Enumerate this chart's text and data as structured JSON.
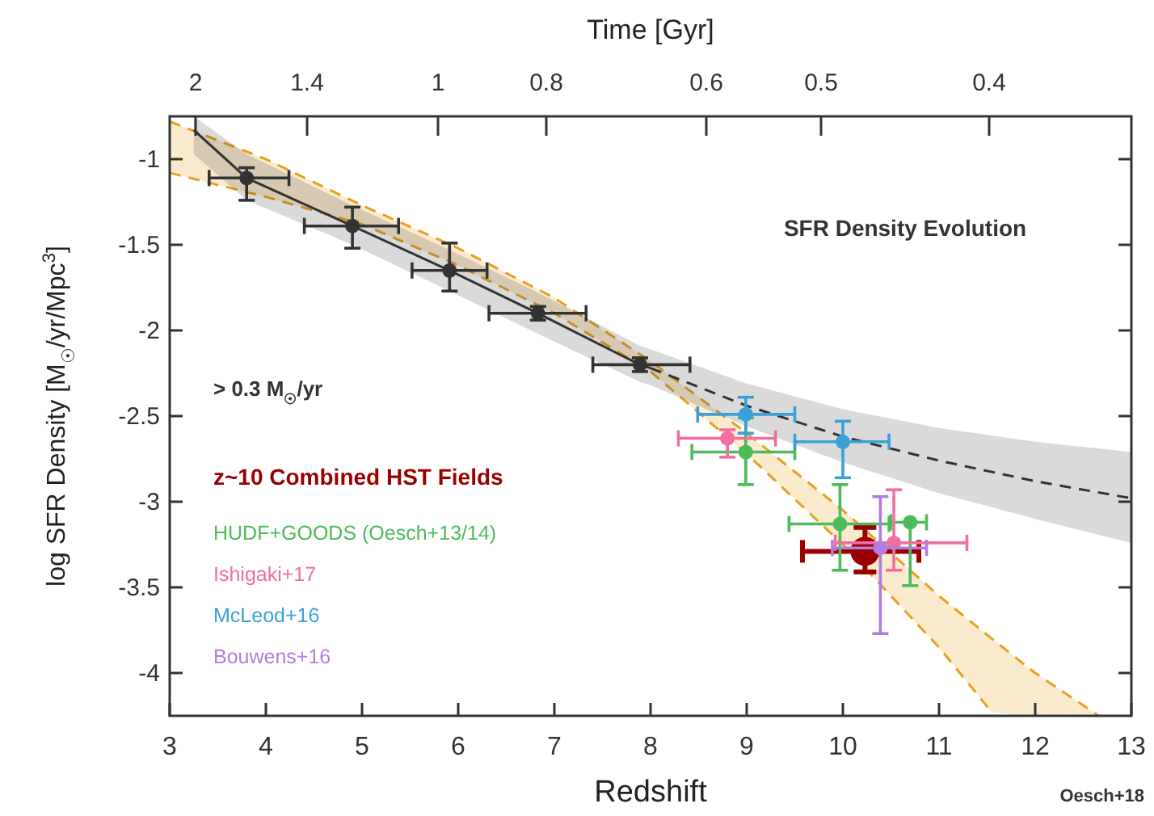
{
  "chart_data": {
    "type": "scatter",
    "xlabel": "Redshift",
    "ylabel": "log SFR Density [M$_{☉}$/yr/Mpc$^{3}$]",
    "x2label": "Time [Gyr]",
    "xlim": [
      3,
      13
    ],
    "ylim": [
      -4.25,
      -0.75
    ],
    "xticks": [
      3,
      4,
      5,
      6,
      7,
      8,
      9,
      10,
      11,
      12,
      13
    ],
    "yticks": [
      -1,
      -1.5,
      -2,
      -2.5,
      -3,
      -3.5,
      -4
    ],
    "grid": false,
    "legend": "left",
    "marker": "circle",
    "annotations": [
      "SFR Density Evolution",
      "> 0.3 M$_{☉}$/yr",
      "Oesch+18",
      "2",
      "1.4",
      "1",
      "0.8",
      "0.6",
      "0.5",
      "0.4"
    ],
    "series": [
      {
        "type": "line",
        "color": "#e8a020",
        "marker": "none",
        "line_style": "dashed",
        "x": [
          3,
          4,
          5,
          6,
          7,
          8,
          9,
          10,
          11,
          11.55,
          12,
          12.66
        ],
        "values": [
          -0.78,
          -1.0,
          -1.27,
          -1.52,
          -1.81,
          -2.18,
          -2.6,
          -3.05,
          -3.55,
          -3.8,
          -4.0,
          -4.25
        ],
        "upper": [
          -0.78,
          -1.0,
          -1.27,
          -1.52,
          -1.81,
          -2.18,
          -2.6,
          -3.05,
          -3.55,
          -3.8,
          -4.0,
          -4.25
        ],
        "lower": [
          -1.08,
          -1.22,
          -1.38,
          -1.62,
          -1.9,
          -2.24,
          -2.72,
          -3.25,
          -3.85,
          -4.23,
          -4.25,
          -4.25
        ]
      },
      {
        "type": "line",
        "color": "#e8a020",
        "marker": "none",
        "line_style": "dashed",
        "x": [
          3,
          4,
          5,
          6,
          7,
          8,
          9,
          10,
          11,
          11.55
        ],
        "values": [
          -1.08,
          -1.22,
          -1.38,
          -1.62,
          -1.9,
          -2.24,
          -2.72,
          -3.25,
          -3.85,
          -4.23
        ]
      },
      {
        "type": "line",
        "color": "#333333",
        "marker": "none",
        "line_style": "solid",
        "x": [
          3.25,
          3.8,
          4.9,
          5.91,
          6.83,
          7.89,
          8.0
        ],
        "values": [
          -0.83,
          -1.11,
          -1.39,
          -1.65,
          -1.9,
          -2.2,
          -2.22
        ],
        "lower": [
          -0.97,
          -1.24,
          -1.5,
          -1.77,
          -2.02,
          -2.3,
          -2.32
        ],
        "upper": [
          -0.75,
          -0.97,
          -1.27,
          -1.53,
          -1.78,
          -2.09,
          -2.11
        ]
      },
      {
        "type": "line",
        "color": "#333333",
        "marker": "none",
        "line_style": "dashed",
        "x": [
          8.0,
          9,
          10,
          11,
          12,
          13
        ],
        "values": [
          -2.22,
          -2.44,
          -2.62,
          -2.76,
          -2.88,
          -2.98
        ],
        "lower": [
          -2.32,
          -2.56,
          -2.77,
          -2.95,
          -3.1,
          -3.24
        ],
        "upper": [
          -2.11,
          -2.31,
          -2.46,
          -2.57,
          -2.65,
          -2.71
        ]
      },
      {
        "color": "#333333",
        "x": [
          3.8,
          4.9,
          5.91,
          6.83,
          7.89
        ],
        "values": [
          -1.11,
          -1.39,
          -1.65,
          -1.9,
          -2.2
        ],
        "xerrors": [
          [
            3.41,
            4.24
          ],
          [
            4.4,
            5.38
          ],
          [
            5.52,
            6.3
          ],
          [
            6.32,
            7.33
          ],
          [
            7.4,
            8.41
          ]
        ],
        "errors": [
          [
            -1.24,
            -1.05
          ],
          [
            -1.52,
            -1.28
          ],
          [
            -1.77,
            -1.49
          ],
          [
            -1.94,
            -1.86
          ],
          [
            -2.24,
            -2.16
          ]
        ]
      },
      {
        "name": "z~10 Combined HST Fields",
        "color": "#9b0000",
        "x": [
          10.23
        ],
        "values": [
          -3.29
        ],
        "xerrors": [
          [
            9.58,
            10.79
          ]
        ],
        "errors": [
          [
            -3.41,
            -3.15
          ]
        ]
      },
      {
        "name": "HUDF+GOODS (Oesch+13/14)",
        "color": "#4dbb5a",
        "x": [
          8.99,
          9.97,
          10.7
        ],
        "values": [
          -2.71,
          -3.13,
          -3.12
        ],
        "xerrors": [
          [
            8.43,
            9.5
          ],
          [
            9.44,
            10.48
          ],
          [
            10.5,
            10.87
          ]
        ],
        "errors": [
          [
            -2.9,
            -2.51
          ],
          [
            -3.4,
            -2.9
          ],
          [
            -3.49,
            -3.12
          ]
        ]
      },
      {
        "name": "Ishigaki+17",
        "color": "#f06fa0",
        "x": [
          8.8,
          10.53
        ],
        "values": [
          -2.63,
          -3.24
        ],
        "xerrors": [
          [
            8.29,
            9.3
          ],
          [
            9.92,
            11.29
          ]
        ],
        "errors": [
          [
            -2.74,
            -2.58
          ],
          [
            -3.4,
            -2.93
          ]
        ]
      },
      {
        "name": "McLeod+16",
        "color": "#3aa0d8",
        "x": [
          8.99,
          10.0
        ],
        "values": [
          -2.49,
          -2.65
        ],
        "xerrors": [
          [
            8.49,
            9.5
          ],
          [
            9.5,
            10.48
          ]
        ],
        "errors": [
          [
            -2.6,
            -2.39
          ],
          [
            -2.86,
            -2.53
          ]
        ]
      },
      {
        "name": "Bouwens+16",
        "color": "#b07de0",
        "x": [
          10.39
        ],
        "values": [
          -3.27
        ],
        "xerrors": [
          [
            9.89,
            10.87
          ]
        ],
        "errors": [
          [
            -3.77,
            -2.97
          ]
        ]
      }
    ]
  }
}
